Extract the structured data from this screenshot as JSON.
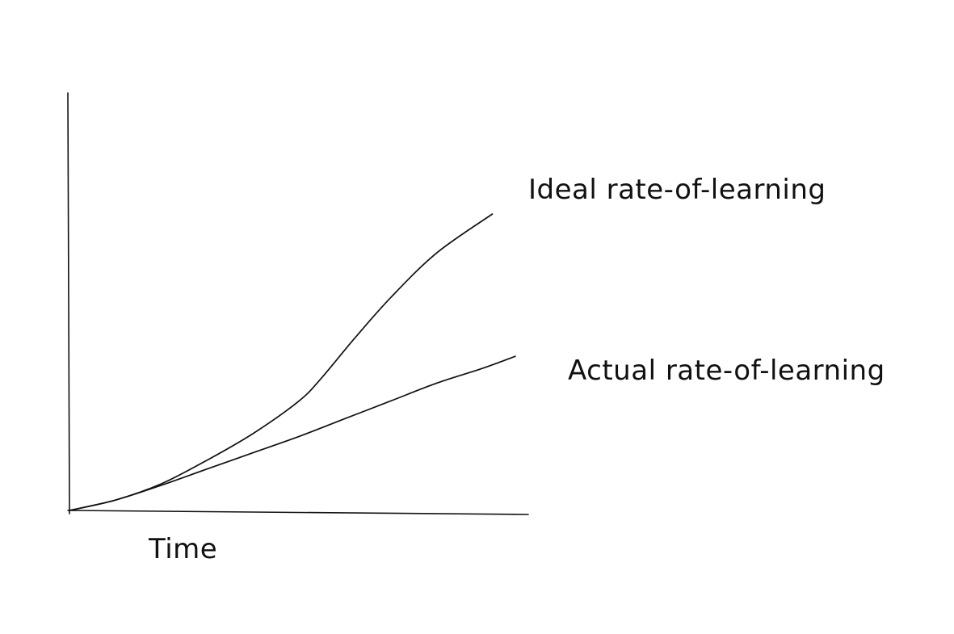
{
  "chart_data": {
    "type": "line",
    "title": "",
    "xlabel": "Time",
    "ylabel": "",
    "grid": false,
    "legend": "none",
    "xlim": [
      0,
      100
    ],
    "ylim": [
      0,
      100
    ],
    "series": [
      {
        "name": "Ideal rate-of-learning",
        "x": [
          0,
          10,
          20,
          30,
          40,
          50,
          55,
          62,
          70,
          80,
          92
        ],
        "y": [
          0,
          3.5,
          9,
          17,
          26,
          37,
          45,
          58,
          72,
          87,
          100
        ]
      },
      {
        "name": "Actual rate-of-learning",
        "x": [
          0,
          10,
          20,
          30,
          40,
          50,
          60,
          70,
          80,
          90,
          97
        ],
        "y": [
          0,
          3.5,
          8.5,
          14,
          19.5,
          25,
          31,
          37,
          43,
          48,
          52
        ]
      }
    ],
    "colors": {
      "axis": "#111111",
      "line": "#111111"
    }
  }
}
